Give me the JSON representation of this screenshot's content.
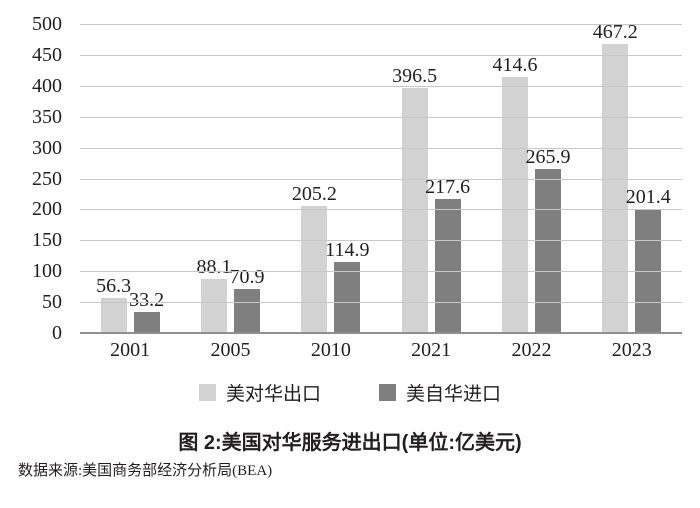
{
  "chart_data": {
    "type": "bar",
    "title": "图 2:美国对华服务进出口(单位:亿美元)",
    "source": "数据来源:美国商务部经济分析局(BEA)",
    "unit": "亿美元",
    "categories": [
      "2001",
      "2005",
      "2010",
      "2021",
      "2022",
      "2023"
    ],
    "series": [
      {
        "name": "美对华出口",
        "color": "#d2d2d2",
        "values": [
          56.3,
          88.1,
          205.2,
          396.5,
          414.6,
          467.2
        ]
      },
      {
        "name": "美自华进口",
        "color": "#7f7f7f",
        "values": [
          33.2,
          70.9,
          114.9,
          217.6,
          265.9,
          201.4
        ]
      }
    ],
    "ylim": [
      0,
      500
    ],
    "ytick_step": 50,
    "yticks": [
      "500",
      "450",
      "400",
      "350",
      "300",
      "250",
      "200",
      "150",
      "100",
      "50",
      "0"
    ],
    "grid": true,
    "legend_position": "bottom",
    "colors": {
      "gridline": "#c8c8c8",
      "axis_line": "#8f8f8f",
      "text": "#231f20",
      "background": "#ffffff"
    }
  }
}
